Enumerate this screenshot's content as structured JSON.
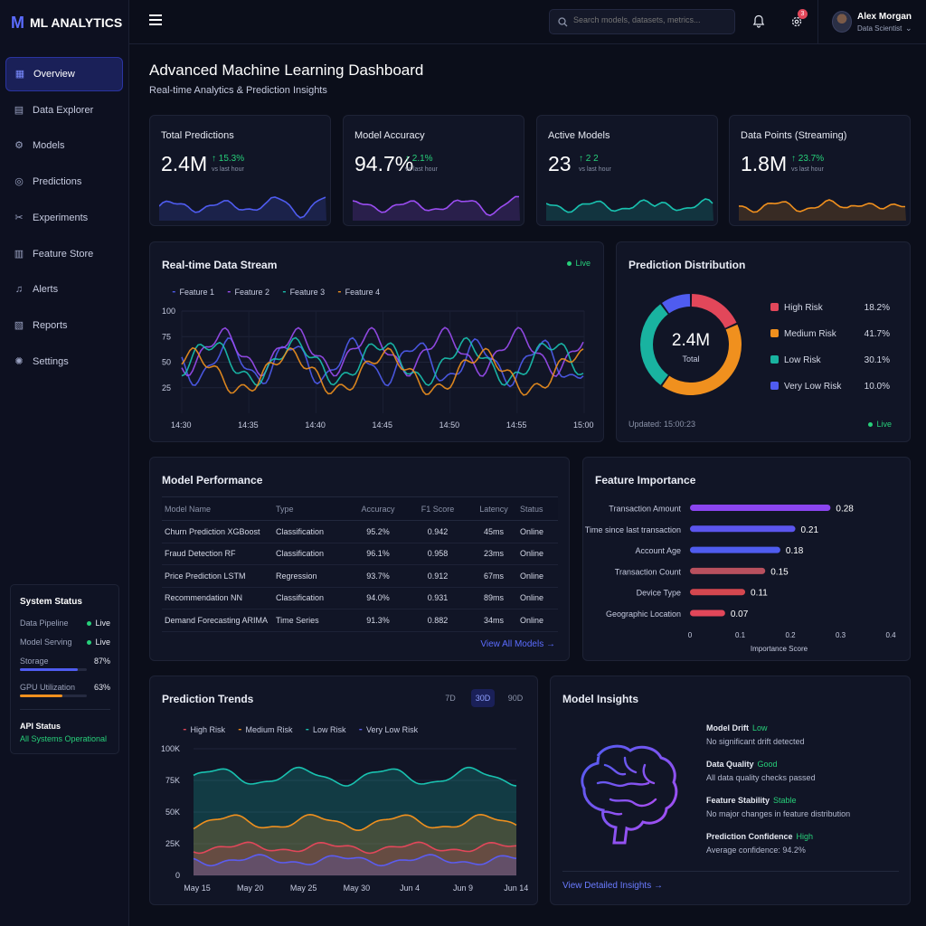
{
  "app": {
    "logo_mark": "M",
    "title": "ML ANALYTICS"
  },
  "sidebar": {
    "items": [
      {
        "label": "Overview",
        "icon": "dashboard-icon"
      },
      {
        "label": "Data Explorer",
        "icon": "data-explorer-icon"
      },
      {
        "label": "Models",
        "icon": "models-icon"
      },
      {
        "label": "Predictions",
        "icon": "predictions-icon"
      },
      {
        "label": "Experiments",
        "icon": "experiments-icon"
      },
      {
        "label": "Feature Store",
        "icon": "feature-store-icon"
      },
      {
        "label": "Alerts",
        "icon": "bell-icon"
      },
      {
        "label": "Reports",
        "icon": "reports-icon"
      },
      {
        "label": "Settings",
        "icon": "gear-icon"
      }
    ],
    "system_status": {
      "title": "System Status",
      "data_pipeline": {
        "label": "Data Pipeline",
        "value": "Live"
      },
      "model_serving": {
        "label": "Model Serving",
        "value": "Live"
      },
      "storage": {
        "label": "Storage",
        "value": "87%",
        "fraction": 0.87
      },
      "gpu": {
        "label": "GPU Utilization",
        "value": "63%",
        "fraction": 0.63
      },
      "api_title": "API Status",
      "api_value": "All Systems Operational"
    }
  },
  "topbar": {
    "search_placeholder": "Search models, datasets, metrics...",
    "notification_count": "3",
    "user_name": "Alex Morgan",
    "user_role": "Data Scientist"
  },
  "header": {
    "title": "Advanced Machine Learning Dashboard",
    "subtitle": "Real-time Analytics & Prediction Insights"
  },
  "kpis": [
    {
      "label": "Total Predictions",
      "value": "2.4M",
      "delta": "15.3%",
      "sub": "vs last hour",
      "color": "#4f5cf0"
    },
    {
      "label": "Model Accuracy",
      "value": "94.7%",
      "delta": "2.1%",
      "sub": "vs last hour",
      "color": "#9b4df2"
    },
    {
      "label": "Active Models",
      "value": "23",
      "delta": "2 2",
      "sub": "vs last hour",
      "color": "#19c2b0"
    },
    {
      "label": "Data Points (Streaming)",
      "value": "1.8M",
      "delta": "23.7%",
      "sub": "vs last hour",
      "color": "#f0901e"
    }
  ],
  "stream": {
    "title": "Real-time Data Stream",
    "live": "Live",
    "series": [
      {
        "name": "Feature 1",
        "color": "#4f5cf0"
      },
      {
        "name": "Feature 2",
        "color": "#9b4df2"
      },
      {
        "name": "Feature 3",
        "color": "#19c2b0"
      },
      {
        "name": "Feature 4",
        "color": "#f0901e"
      }
    ],
    "y_ticks": [
      "100",
      "75",
      "50",
      "25"
    ],
    "x_ticks": [
      "14:30",
      "14:35",
      "14:40",
      "14:45",
      "14:50",
      "14:55",
      "15:00"
    ]
  },
  "distribution": {
    "title": "Prediction Distribution",
    "center_value": "2.4M",
    "center_label": "Total",
    "updated": "Updated: 15:00:23",
    "live": "Live",
    "slices": [
      {
        "name": "High Risk",
        "pct": "18.2%",
        "value": 18.2,
        "color": "#e2475a"
      },
      {
        "name": "Medium Risk",
        "pct": "41.7%",
        "value": 41.7,
        "color": "#f0901e"
      },
      {
        "name": "Low Risk",
        "pct": "30.1%",
        "value": 30.1,
        "color": "#19b3a0"
      },
      {
        "name": "Very Low Risk",
        "pct": "10.0%",
        "value": 10.0,
        "color": "#4f5cf0"
      }
    ]
  },
  "performance": {
    "title": "Model Performance",
    "columns": [
      "Model Name",
      "Type",
      "Accuracy",
      "F1 Score",
      "Latency",
      "Status"
    ],
    "rows": [
      [
        "Churn Prediction XGBoost",
        "Classification",
        "95.2%",
        "0.942",
        "45ms",
        "Online"
      ],
      [
        "Fraud Detection RF",
        "Classification",
        "96.1%",
        "0.958",
        "23ms",
        "Online"
      ],
      [
        "Price Prediction LSTM",
        "Regression",
        "93.7%",
        "0.912",
        "67ms",
        "Online"
      ],
      [
        "Recommendation NN",
        "Classification",
        "94.0%",
        "0.931",
        "89ms",
        "Online"
      ],
      [
        "Demand Forecasting ARIMA",
        "Time Series",
        "91.3%",
        "0.882",
        "34ms",
        "Online"
      ]
    ],
    "link": "View All Models →"
  },
  "features": {
    "title": "Feature Importance",
    "items": [
      {
        "name": "Transaction Amount",
        "value": 0.28,
        "label": "0.28",
        "color": "#8b45f0"
      },
      {
        "name": "Time since last transaction",
        "value": 0.21,
        "label": "0.21",
        "color": "#5b55ee"
      },
      {
        "name": "Account Age",
        "value": 0.18,
        "label": "0.18",
        "color": "#4f5cf0"
      },
      {
        "name": "Transaction Count",
        "value": 0.15,
        "label": "0.15",
        "color": "#b8505e"
      },
      {
        "name": "Device Type",
        "value": 0.11,
        "label": "0.11",
        "color": "#d4474f"
      },
      {
        "name": "Geographic Location",
        "value": 0.07,
        "label": "0.07",
        "color": "#e2475a"
      }
    ],
    "x_ticks": [
      "0",
      "0.1",
      "0.2",
      "0.3",
      "0.4"
    ],
    "x_label": "Importance Score"
  },
  "trends": {
    "title": "Prediction Trends",
    "ranges": [
      "7D",
      "30D",
      "90D"
    ],
    "selected_range": "30D",
    "series": [
      {
        "name": "High Risk",
        "color": "#e2475a"
      },
      {
        "name": "Medium Risk",
        "color": "#f0901e"
      },
      {
        "name": "Low Risk",
        "color": "#19c2b0"
      },
      {
        "name": "Very Low Risk",
        "color": "#5b5cf0"
      }
    ],
    "y_ticks": [
      "100K",
      "75K",
      "50K",
      "25K",
      "0"
    ],
    "x_ticks": [
      "May 15",
      "May 20",
      "May 25",
      "May 30",
      "Jun 4",
      "Jun 9",
      "Jun 14"
    ]
  },
  "insights": {
    "title": "Model Insights",
    "items": [
      {
        "title": "Model Drift",
        "status": "Low",
        "desc": "No significant drift detected"
      },
      {
        "title": "Data Quality",
        "status": "Good",
        "desc": "All data quality checks passed"
      },
      {
        "title": "Feature Stability",
        "status": "Stable",
        "desc": "No major changes in feature distribution"
      },
      {
        "title": "Prediction Confidence",
        "status": "High",
        "desc": "Average confidence: 94.2%"
      }
    ],
    "link": "View Detailed Insights →"
  }
}
